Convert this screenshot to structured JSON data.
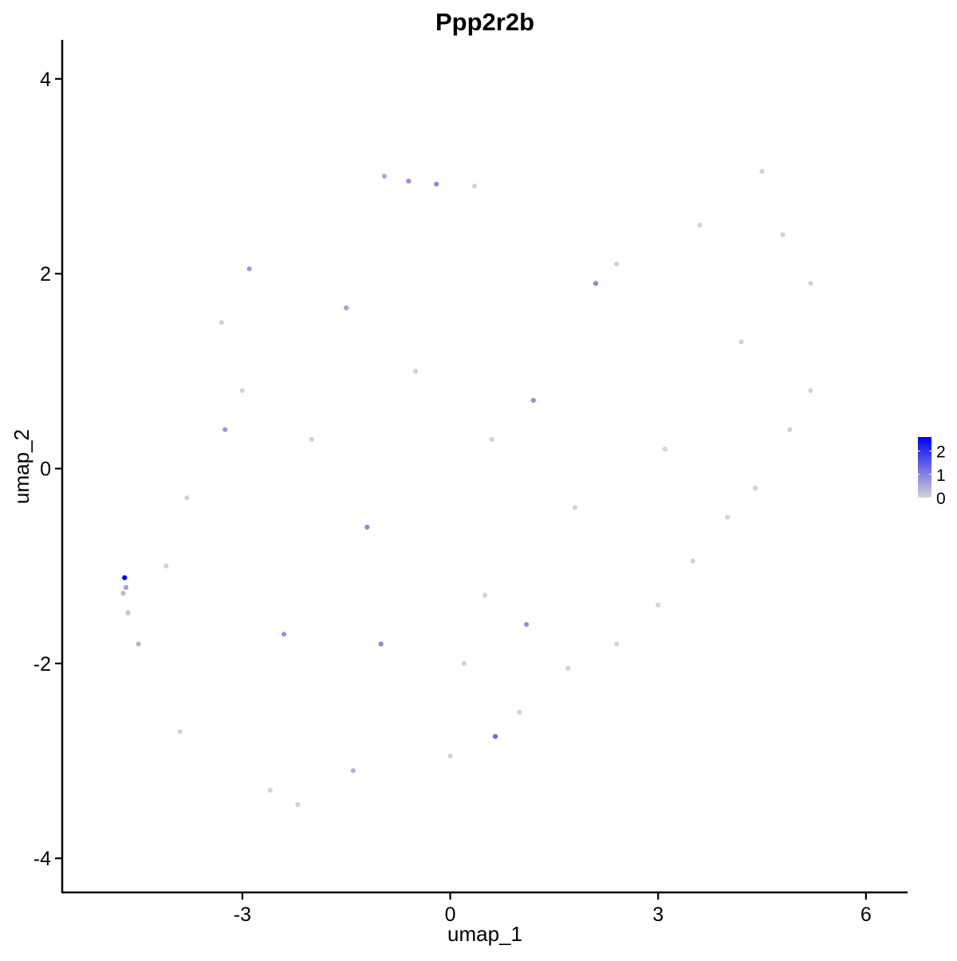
{
  "chart_data": {
    "type": "scatter",
    "title": "Ppp2r2b",
    "xlabel": "umap_1",
    "ylabel": "umap_2",
    "xlim": [
      -5.6,
      6.6
    ],
    "ylim": [
      -4.35,
      4.4
    ],
    "x_ticks": [
      -3,
      0,
      3,
      6
    ],
    "y_ticks": [
      -4,
      -2,
      0,
      2,
      4
    ],
    "x_tick_labels": [
      "-3",
      "0",
      "3",
      "6"
    ],
    "y_tick_labels": [
      "-4",
      "-2",
      "0",
      "2",
      "4"
    ],
    "grid": false,
    "legend_position": "right",
    "color_scale": {
      "low": "#d3d3d3",
      "high": "#0000ff",
      "min": 0,
      "max": 2.6,
      "tick_values": [
        0,
        1,
        2
      ],
      "tick_labels": [
        "0",
        "1",
        "2"
      ]
    },
    "series": [
      {
        "points": [
          [
            -4.7,
            -1.12,
            2.6
          ],
          [
            -4.68,
            -1.22,
            0.6
          ],
          [
            -4.72,
            -1.28,
            0.3
          ],
          [
            -4.65,
            -1.48,
            0.2
          ],
          [
            -4.5,
            -1.8,
            0.4
          ],
          [
            -0.95,
            3.0,
            0.5
          ],
          [
            -0.6,
            2.95,
            0.8
          ],
          [
            -0.2,
            2.92,
            0.9
          ],
          [
            0.35,
            2.9,
            0.0
          ],
          [
            2.4,
            2.1,
            0.0
          ],
          [
            4.5,
            3.05,
            0.0
          ],
          [
            4.8,
            2.4,
            0.0
          ],
          [
            5.2,
            1.9,
            0.0
          ],
          [
            -2.9,
            2.05,
            0.7
          ],
          [
            -3.3,
            1.5,
            0.0
          ],
          [
            -3.0,
            0.8,
            0.0
          ],
          [
            -3.25,
            0.4,
            0.7
          ],
          [
            -3.8,
            -0.3,
            0.0
          ],
          [
            -4.1,
            -1.0,
            0.0
          ],
          [
            -3.9,
            -2.7,
            0.0
          ],
          [
            -2.6,
            -3.3,
            0.0
          ],
          [
            -2.2,
            -3.45,
            0.0
          ],
          [
            -1.4,
            -3.1,
            0.4
          ],
          [
            0.0,
            -2.95,
            0.0
          ],
          [
            0.65,
            -2.75,
            1.3
          ],
          [
            1.0,
            -2.5,
            0.0
          ],
          [
            1.7,
            -2.05,
            0.0
          ],
          [
            2.4,
            -1.8,
            0.0
          ],
          [
            3.0,
            -1.4,
            0.0
          ],
          [
            3.5,
            -0.95,
            0.0
          ],
          [
            4.0,
            -0.5,
            0.0
          ],
          [
            4.4,
            -0.2,
            0.0
          ],
          [
            4.9,
            0.4,
            0.0
          ],
          [
            5.2,
            0.8,
            0.0
          ],
          [
            -1.2,
            -0.6,
            0.9
          ],
          [
            0.5,
            -1.3,
            0.0
          ],
          [
            1.2,
            0.7,
            0.8
          ],
          [
            2.1,
            1.9,
            0.9
          ],
          [
            3.6,
            2.5,
            0.0
          ],
          [
            -1.5,
            1.65,
            0.6
          ],
          [
            -0.5,
            1.0,
            0.0
          ],
          [
            0.6,
            0.3,
            0.0
          ],
          [
            1.8,
            -0.4,
            0.0
          ],
          [
            3.1,
            0.2,
            0.0
          ],
          [
            4.2,
            1.3,
            0.0
          ],
          [
            -2.4,
            -1.7,
            0.8
          ],
          [
            -1.0,
            -1.8,
            0.9
          ],
          [
            0.2,
            -2.0,
            0.0
          ],
          [
            1.1,
            -1.6,
            0.8
          ],
          [
            -2.0,
            0.3,
            0.0
          ]
        ]
      }
    ]
  }
}
